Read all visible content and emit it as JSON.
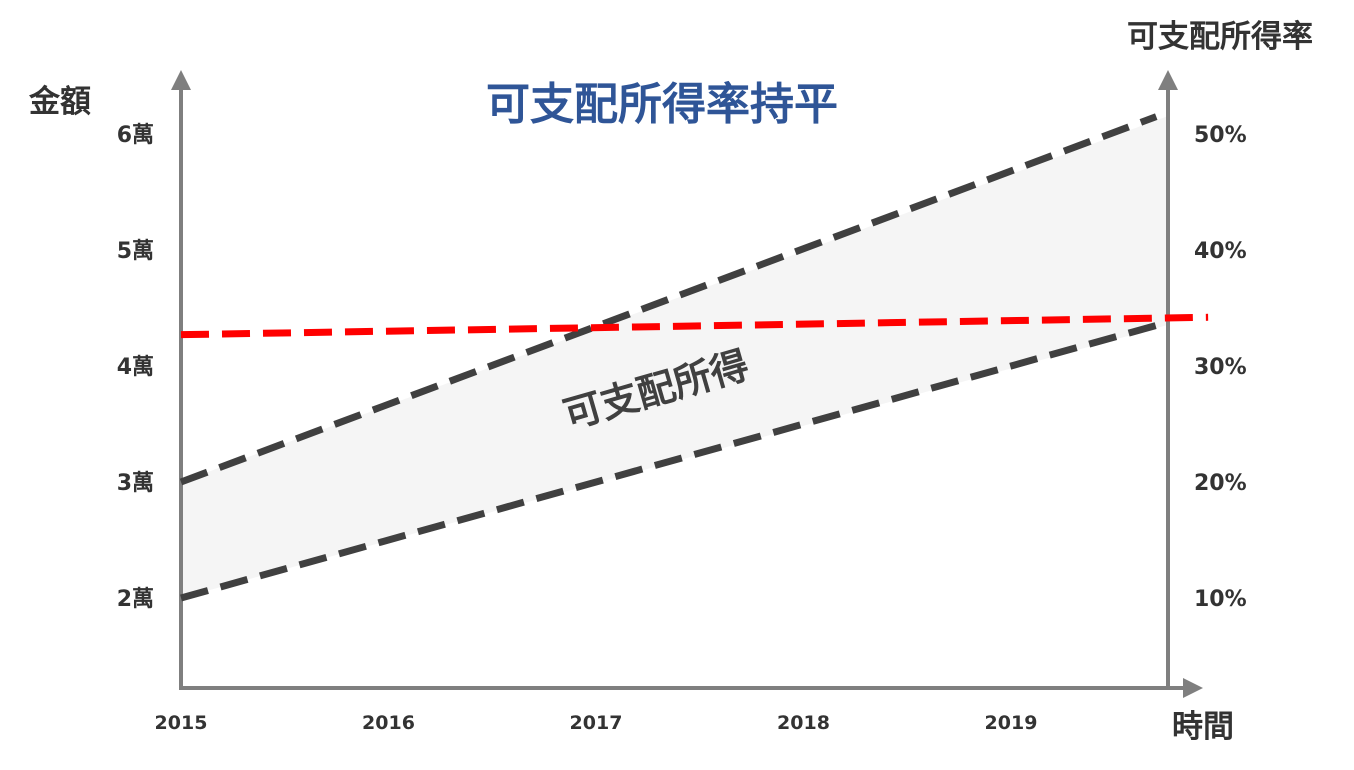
{
  "chart_data": {
    "type": "line",
    "title": "可支配所得率持平",
    "ylabel_left": "金額",
    "ylabel_right": "可支配所得率",
    "xlabel": "時間",
    "x_ticks": [
      "2015",
      "2016",
      "2017",
      "2018",
      "2019"
    ],
    "y_left_ticks": [
      "6萬",
      "5萬",
      "4萬",
      "3萬",
      "2萬"
    ],
    "y_right_ticks": [
      "50%",
      "40%",
      "30%",
      "20%",
      "10%"
    ],
    "band_label": "可支配所得",
    "series": [
      {
        "role": "upper",
        "color": "#404040",
        "dashed": true,
        "x": [
          2015,
          2019.7
        ],
        "y": [
          30000,
          61500
        ]
      },
      {
        "role": "lower",
        "color": "#404040",
        "dashed": true,
        "x": [
          2015,
          2019.7
        ],
        "y": [
          20000,
          43500
        ]
      },
      {
        "role": "ratio",
        "axis": "right",
        "color": "#ff0000",
        "dashed": true,
        "x": [
          2015,
          2019.95
        ],
        "y": [
          32.7,
          34.2
        ]
      }
    ],
    "band_fill": "#f5f5f5",
    "axis_color": "#7f7f7f"
  }
}
